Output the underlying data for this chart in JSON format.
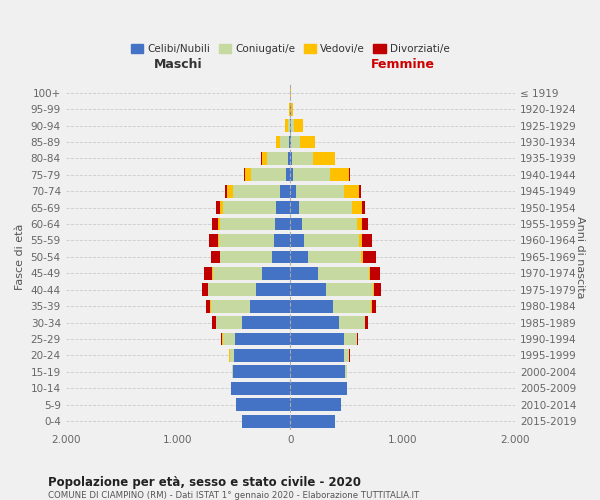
{
  "age_groups": [
    "0-4",
    "5-9",
    "10-14",
    "15-19",
    "20-24",
    "25-29",
    "30-34",
    "35-39",
    "40-44",
    "45-49",
    "50-54",
    "55-59",
    "60-64",
    "65-69",
    "70-74",
    "75-79",
    "80-84",
    "85-89",
    "90-94",
    "95-99",
    "100+"
  ],
  "birth_years": [
    "2015-2019",
    "2010-2014",
    "2005-2009",
    "2000-2004",
    "1995-1999",
    "1990-1994",
    "1985-1989",
    "1980-1984",
    "1975-1979",
    "1970-1974",
    "1965-1969",
    "1960-1964",
    "1955-1959",
    "1950-1954",
    "1945-1949",
    "1940-1944",
    "1935-1939",
    "1930-1934",
    "1925-1929",
    "1920-1924",
    "≤ 1919"
  ],
  "colors": {
    "celibi": "#4472c4",
    "coniugati": "#c5d9a0",
    "vedovi": "#ffc000",
    "divorziati": "#c00000"
  },
  "males": {
    "celibi": [
      430,
      480,
      530,
      510,
      500,
      490,
      430,
      360,
      310,
      250,
      165,
      145,
      135,
      130,
      90,
      40,
      25,
      15,
      5,
      2,
      0
    ],
    "coniugati": [
      0,
      0,
      2,
      10,
      40,
      110,
      230,
      350,
      420,
      440,
      460,
      490,
      490,
      470,
      420,
      310,
      180,
      80,
      20,
      3,
      0
    ],
    "vedovi": [
      0,
      0,
      0,
      0,
      2,
      5,
      5,
      5,
      5,
      5,
      5,
      10,
      20,
      30,
      50,
      50,
      50,
      30,
      20,
      5,
      0
    ],
    "divorziati": [
      0,
      0,
      0,
      0,
      5,
      10,
      30,
      40,
      50,
      70,
      80,
      80,
      55,
      30,
      20,
      10,
      5,
      0,
      0,
      0,
      0
    ]
  },
  "females": {
    "celibi": [
      400,
      450,
      500,
      490,
      480,
      480,
      430,
      380,
      320,
      250,
      160,
      120,
      100,
      80,
      50,
      25,
      15,
      10,
      5,
      2,
      0
    ],
    "coniugati": [
      0,
      0,
      2,
      10,
      40,
      110,
      230,
      340,
      420,
      450,
      470,
      490,
      490,
      470,
      430,
      330,
      190,
      80,
      25,
      3,
      0
    ],
    "vedovi": [
      0,
      0,
      0,
      0,
      2,
      5,
      5,
      5,
      8,
      10,
      15,
      25,
      50,
      90,
      130,
      170,
      190,
      130,
      80,
      20,
      2
    ],
    "divorziati": [
      0,
      0,
      0,
      0,
      5,
      10,
      25,
      40,
      55,
      90,
      120,
      90,
      50,
      20,
      15,
      10,
      5,
      0,
      0,
      0,
      0
    ]
  },
  "title": "Popolazione per età, sesso e stato civile - 2020",
  "subtitle": "COMUNE DI CIAMPINO (RM) - Dati ISTAT 1° gennaio 2020 - Elaborazione TUTTITALIA.IT",
  "xlabel_left": "Maschi",
  "xlabel_right": "Femmine",
  "ylabel_left": "Fasce di età",
  "ylabel_right": "Anni di nascita",
  "xlim": 2000,
  "background_color": "#f0f0f0",
  "legend_labels": [
    "Celibi/Nubili",
    "Coniugati/e",
    "Vedovi/e",
    "Divorziati/e"
  ]
}
